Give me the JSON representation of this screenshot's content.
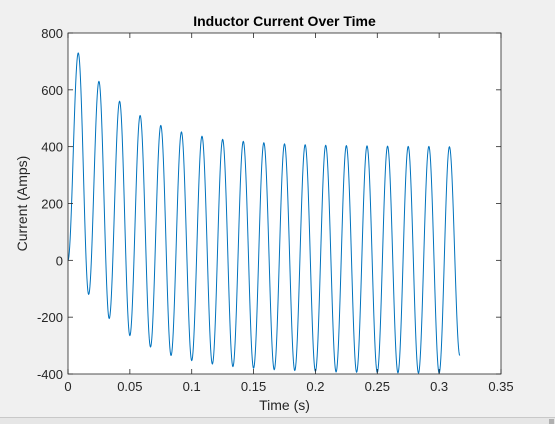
{
  "chart_data": {
    "type": "line",
    "title": "Inductor Current Over Time",
    "xlabel": "Time (s)",
    "ylabel": "Current (Amps)",
    "xlim": [
      0,
      0.35
    ],
    "ylim": [
      -400,
      800
    ],
    "xticks": [
      0,
      0.05,
      0.1,
      0.15,
      0.2,
      0.25,
      0.3,
      0.35
    ],
    "xtick_labels": [
      "0",
      "0.05",
      "0.1",
      "0.15",
      "0.2",
      "0.25",
      "0.3",
      "0.35"
    ],
    "yticks": [
      -400,
      -200,
      0,
      200,
      400,
      600,
      800
    ],
    "ytick_labels": [
      "-400",
      "-200",
      "0",
      "200",
      "400",
      "600",
      "800"
    ],
    "grid": false,
    "series": [
      {
        "color": "#0072bd",
        "x": [
          0,
          0.0083,
          0.0167,
          0.025,
          0.0333,
          0.0417,
          0.05,
          0.0583,
          0.0667,
          0.075,
          0.0833,
          0.0917,
          0.1,
          0.1083,
          0.1167,
          0.125,
          0.1333,
          0.1417,
          0.15,
          0.1583,
          0.1667,
          0.175,
          0.1833,
          0.1917,
          0.2,
          0.2083,
          0.2167,
          0.225,
          0.2333,
          0.2417,
          0.25,
          0.2583,
          0.2667,
          0.275,
          0.2833,
          0.2917,
          0.3,
          0.3083,
          0.3167
        ],
        "y": [
          0,
          730,
          -120,
          630,
          -205,
          560,
          -265,
          510,
          -305,
          475,
          -335,
          452,
          -353,
          437,
          -365,
          426,
          -374,
          419,
          -380,
          414,
          -385,
          410,
          -388,
          407,
          -391,
          405,
          -393,
          404,
          -394,
          403,
          -395,
          402,
          -396,
          401,
          -397,
          401,
          -397,
          400,
          -335
        ]
      }
    ]
  }
}
